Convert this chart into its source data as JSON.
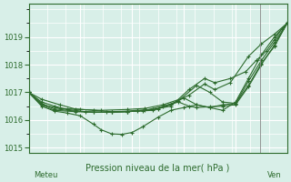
{
  "title": "Pression niveau de la mer( hPa )",
  "xlabel_left": "Meteu",
  "xlabel_right": "Ven",
  "ylim": [
    1014.8,
    1020.2
  ],
  "yticks": [
    1015,
    1016,
    1017,
    1018,
    1019
  ],
  "bg_color": "#d8efe8",
  "grid_color": "#ffffff",
  "line_color": "#2d6b2d",
  "marker": "+",
  "lines": [
    [
      0.0,
      1017.0,
      0.05,
      1016.75,
      0.12,
      1016.55,
      0.18,
      1016.4,
      0.25,
      1016.35,
      0.32,
      1016.3,
      0.38,
      1016.32,
      0.42,
      1016.35,
      0.48,
      1016.38,
      0.55,
      1016.5,
      0.62,
      1017.1,
      0.68,
      1017.5,
      0.72,
      1017.35,
      0.78,
      1017.5,
      0.84,
      1017.75,
      0.88,
      1018.15,
      0.92,
      1018.5,
      0.95,
      1018.9,
      0.98,
      1019.3,
      1.0,
      1019.5
    ],
    [
      0.0,
      1017.0,
      0.05,
      1016.65,
      0.1,
      1016.5,
      0.15,
      1016.38,
      0.22,
      1016.3,
      0.3,
      1016.28,
      0.38,
      1016.3,
      0.42,
      1016.32,
      0.48,
      1016.35,
      0.55,
      1016.55,
      0.62,
      1016.9,
      0.68,
      1017.3,
      0.72,
      1017.1,
      0.78,
      1017.35,
      0.85,
      1018.3,
      0.9,
      1018.75,
      0.95,
      1019.1,
      1.0,
      1019.5
    ],
    [
      0.0,
      1017.0,
      0.05,
      1016.6,
      0.1,
      1016.4,
      0.18,
      1016.32,
      0.25,
      1016.28,
      0.32,
      1016.28,
      0.38,
      1016.3,
      0.44,
      1016.33,
      0.5,
      1016.4,
      0.58,
      1016.7,
      0.65,
      1017.25,
      0.7,
      1017.0,
      0.75,
      1016.65,
      0.8,
      1016.6,
      0.85,
      1017.4,
      0.9,
      1018.15,
      0.95,
      1018.8,
      1.0,
      1019.5
    ],
    [
      0.0,
      1017.0,
      0.05,
      1016.5,
      0.1,
      1016.32,
      0.15,
      1016.25,
      0.2,
      1016.15,
      0.25,
      1015.85,
      0.28,
      1015.65,
      0.32,
      1015.5,
      0.36,
      1015.48,
      0.4,
      1015.55,
      0.44,
      1015.75,
      0.5,
      1016.1,
      0.55,
      1016.35,
      0.6,
      1016.45,
      0.65,
      1016.55,
      0.7,
      1016.45,
      0.75,
      1016.35,
      0.8,
      1016.65,
      0.85,
      1017.5,
      0.9,
      1018.35,
      0.95,
      1019.0,
      1.0,
      1019.5
    ],
    [
      0.0,
      1017.0,
      0.05,
      1016.55,
      0.1,
      1016.35,
      0.18,
      1016.3,
      0.25,
      1016.28,
      0.32,
      1016.28,
      0.38,
      1016.3,
      0.45,
      1016.35,
      0.52,
      1016.5,
      0.58,
      1016.65,
      0.62,
      1016.5,
      0.65,
      1016.45,
      0.7,
      1016.48,
      0.75,
      1016.5,
      0.8,
      1016.55,
      0.85,
      1017.2,
      0.9,
      1018.0,
      0.95,
      1018.7,
      1.0,
      1019.5
    ],
    [
      0.0,
      1017.0,
      0.05,
      1016.55,
      0.12,
      1016.42,
      0.2,
      1016.38,
      0.28,
      1016.35,
      0.38,
      1016.38,
      0.45,
      1016.42,
      0.52,
      1016.55,
      0.6,
      1016.8,
      0.65,
      1016.55,
      0.7,
      1016.45,
      0.75,
      1016.55,
      0.8,
      1016.6,
      0.85,
      1017.25,
      0.9,
      1018.05,
      0.95,
      1018.65,
      1.0,
      1019.5
    ]
  ]
}
